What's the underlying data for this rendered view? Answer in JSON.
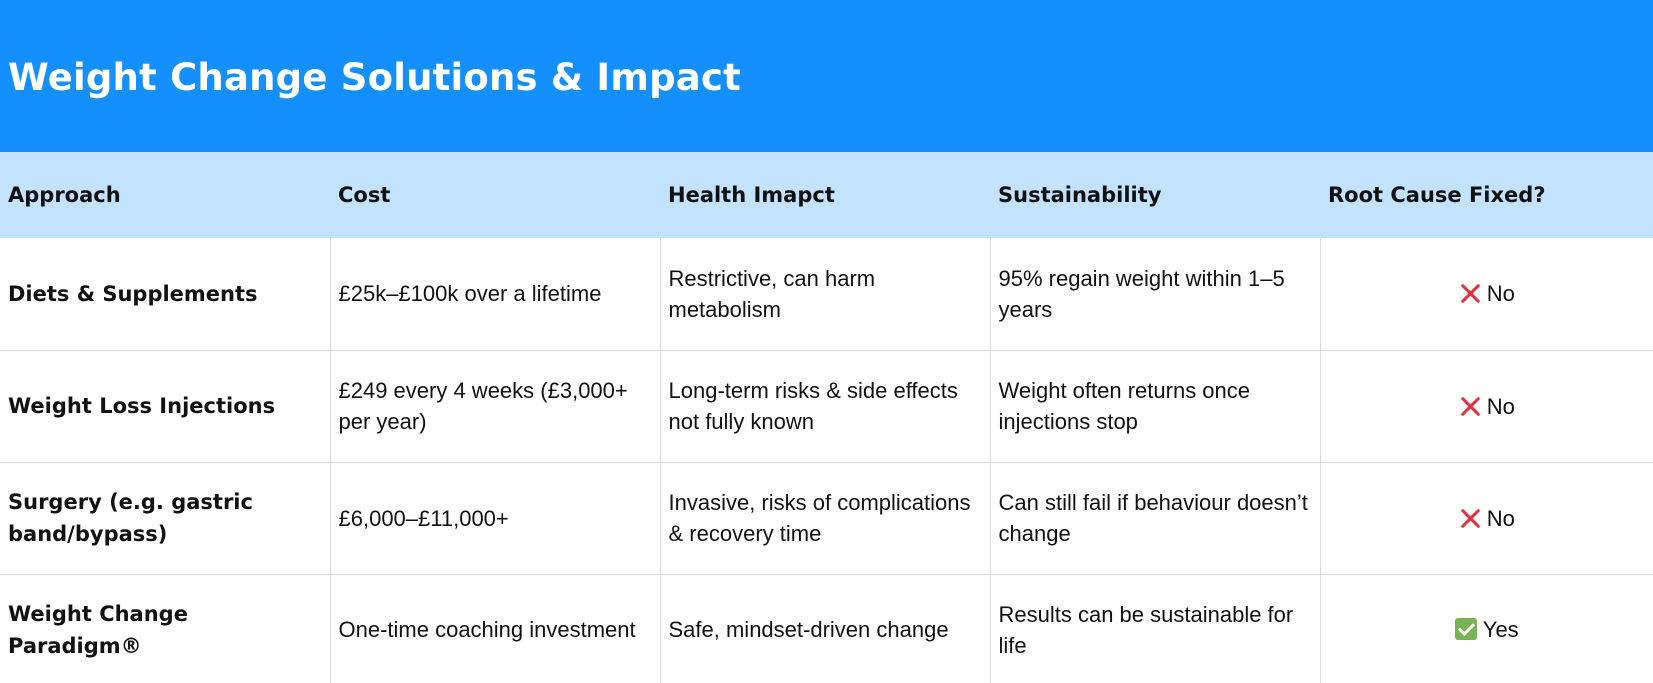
{
  "title": "Weight Change Solutions & Impact",
  "columns": [
    "Approach",
    "Cost",
    "Health Imapct",
    "Sustainability",
    "Root Cause Fixed?"
  ],
  "rows": [
    {
      "approach": "Diets & Supplements",
      "cost": "£25k–£100k over a lifetime",
      "health": "Restrictive, can harm metabolism",
      "sustainability": "95% regain weight within 1–5 years",
      "fixed": "No",
      "fixed_icon": "cross-mark-icon"
    },
    {
      "approach": "Weight Loss Injections",
      "cost": "£249 every 4 weeks (£3,000+ per year)",
      "health": "Long-term risks & side effects not fully known",
      "sustainability": "Weight often returns once injections stop",
      "fixed": "No",
      "fixed_icon": "cross-mark-icon"
    },
    {
      "approach": "Surgery (e.g. gastric band/bypass)",
      "cost": "£6,000–£11,000+",
      "health": "Invasive, risks of complications & recovery time",
      "sustainability": "Can still fail if behaviour doesn’t change",
      "fixed": "No",
      "fixed_icon": "cross-mark-icon"
    },
    {
      "approach": "Weight Change Paradigm®",
      "cost": "One-time coaching investment",
      "health": "Safe, mindset-driven change",
      "sustainability": "Results can be sustainable for life",
      "fixed": "Yes",
      "fixed_icon": "check-mark-icon"
    }
  ],
  "colors": {
    "title_bar": "#138ffe",
    "header_row": "#c3e2fd",
    "cross": "#e0323c",
    "check": "#77b255"
  }
}
